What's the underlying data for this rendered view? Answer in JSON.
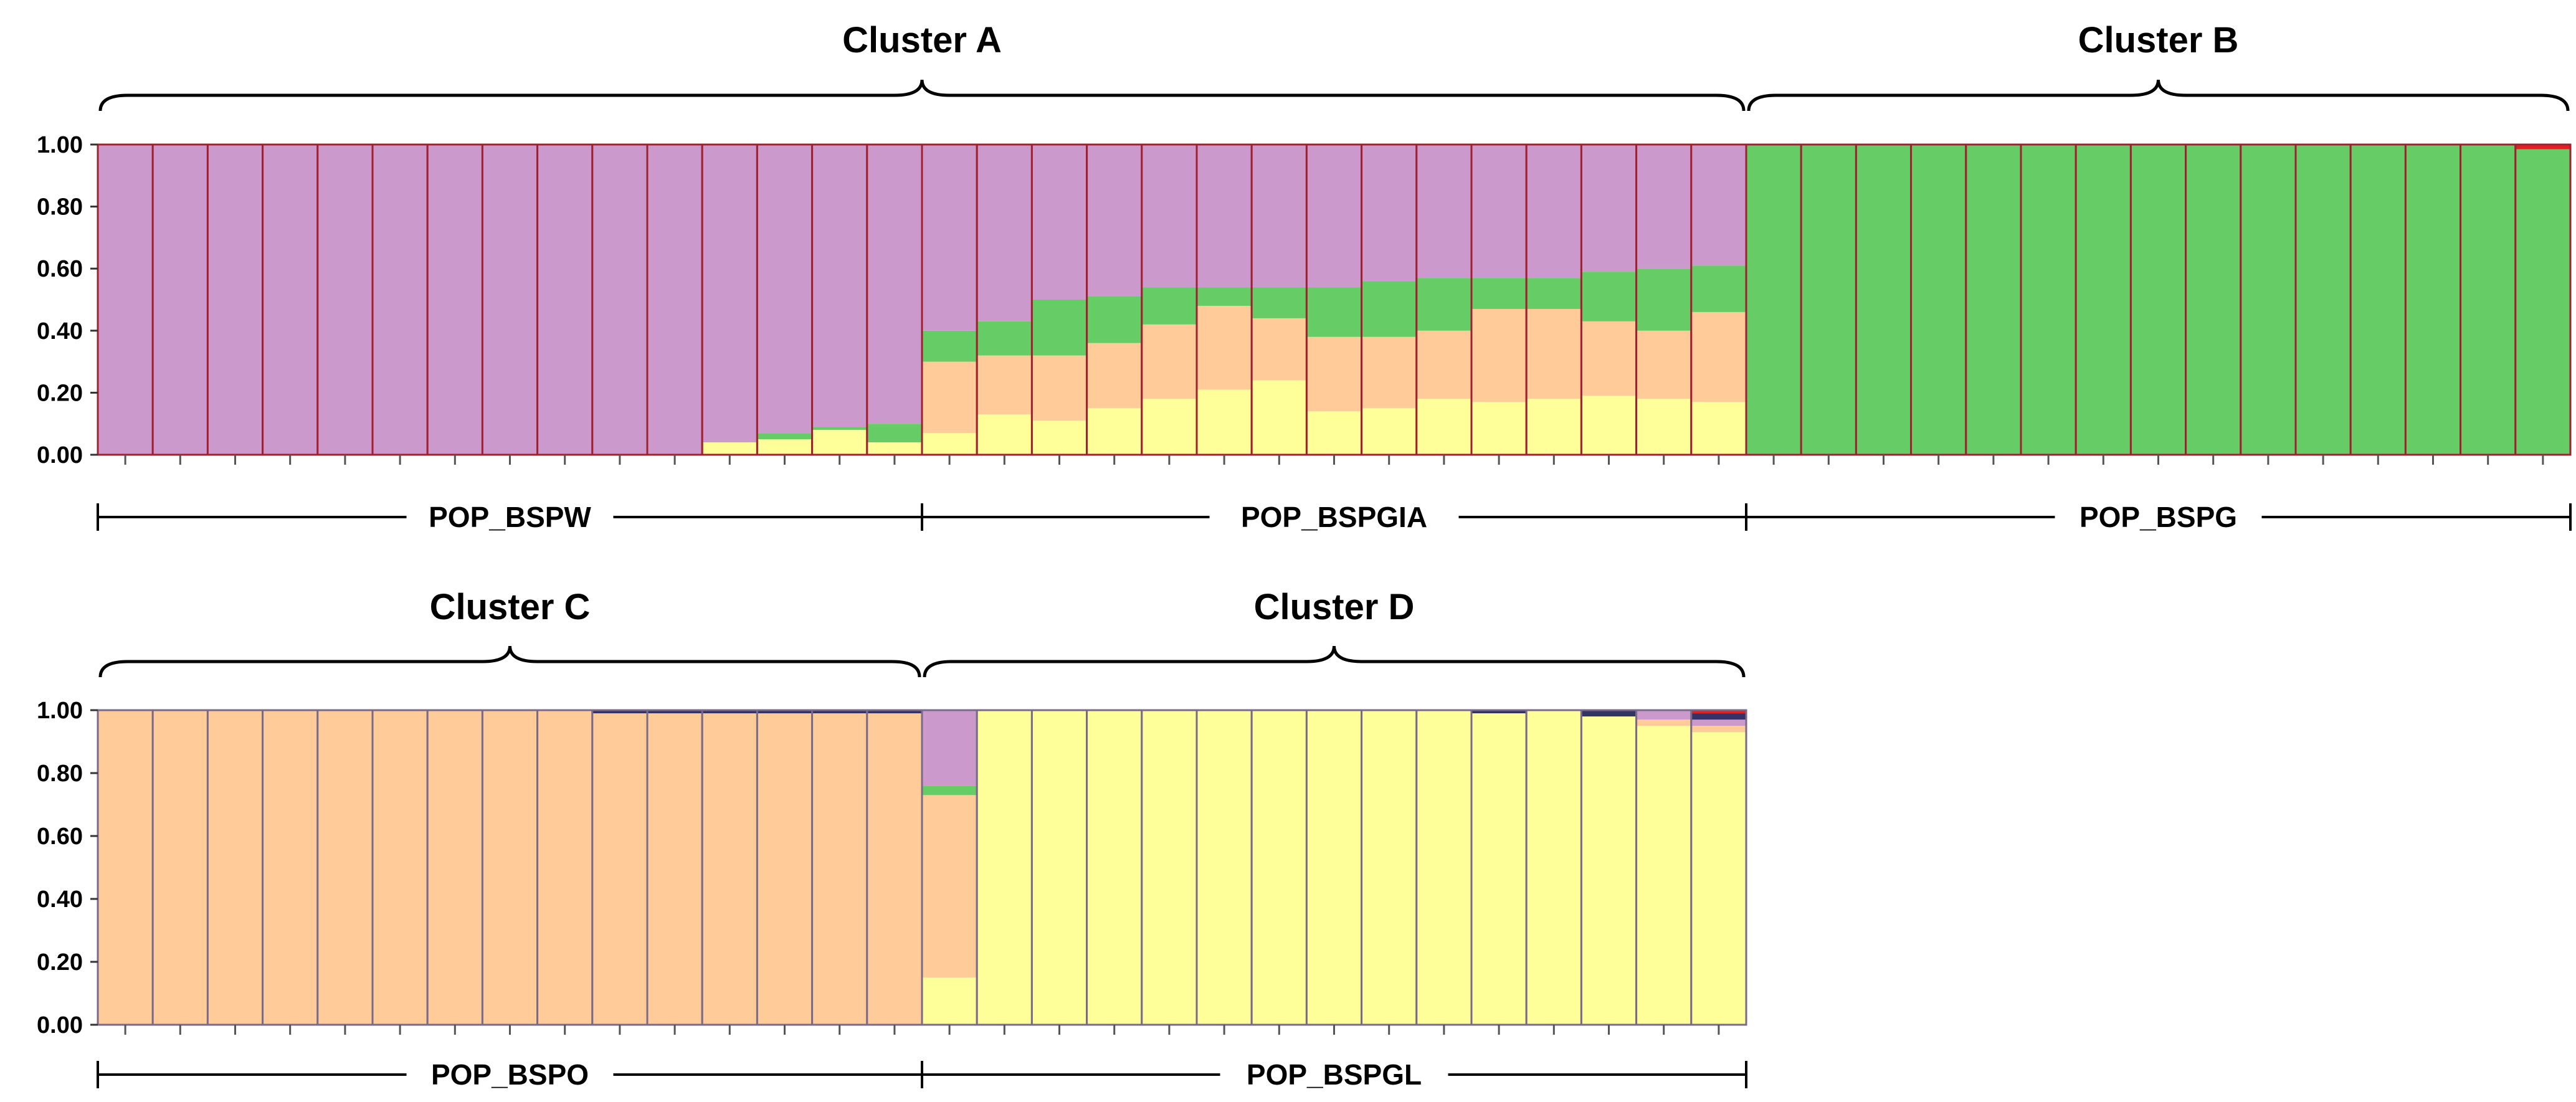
{
  "colors": {
    "purple": "#CC99CC",
    "green": "#66CC66",
    "orange": "#FFCC99",
    "yellow": "#FFFF99",
    "red": "#E02020",
    "navy": "#333366",
    "black": "#000000"
  },
  "chart_data": [
    {
      "type": "bar",
      "stacked": true,
      "ylim": [
        0,
        1
      ],
      "yticks": [
        "0.00",
        "0.20",
        "0.40",
        "0.60",
        "0.80",
        "1.00"
      ],
      "clusters": [
        {
          "label": "Cluster  A",
          "from": 0,
          "to": 30
        },
        {
          "label": "Cluster  B",
          "from": 30,
          "to": 45
        }
      ],
      "populations": [
        {
          "label": "POP_BSPW",
          "from": 0,
          "to": 15
        },
        {
          "label": "POP_BSPGIA",
          "from": 15,
          "to": 30
        },
        {
          "label": "POP_BSPG",
          "from": 30,
          "to": 45
        }
      ],
      "component_order": [
        "yellow",
        "orange",
        "green",
        "purple",
        "red"
      ],
      "component_colors": [
        "#FFFF99",
        "#FFCC99",
        "#66CC66",
        "#CC99CC",
        "#E02020"
      ],
      "bar_border": "#A02030",
      "bars": [
        [
          0,
          0,
          0,
          1,
          0
        ],
        [
          0,
          0,
          0,
          1,
          0
        ],
        [
          0,
          0,
          0,
          1,
          0
        ],
        [
          0,
          0,
          0,
          1,
          0
        ],
        [
          0,
          0,
          0,
          1,
          0
        ],
        [
          0,
          0,
          0,
          1,
          0
        ],
        [
          0,
          0,
          0,
          1,
          0
        ],
        [
          0,
          0,
          0,
          1,
          0
        ],
        [
          0,
          0,
          0,
          1,
          0
        ],
        [
          0,
          0,
          0,
          1,
          0
        ],
        [
          0,
          0,
          0,
          1,
          0
        ],
        [
          0.04,
          0,
          0,
          0.96,
          0
        ],
        [
          0.05,
          0,
          0.02,
          0.93,
          0
        ],
        [
          0.08,
          0,
          0.01,
          0.91,
          0
        ],
        [
          0.04,
          0,
          0.06,
          0.9,
          0
        ],
        [
          0.07,
          0.23,
          0.1,
          0.6,
          0
        ],
        [
          0.13,
          0.19,
          0.11,
          0.57,
          0
        ],
        [
          0.11,
          0.21,
          0.18,
          0.5,
          0
        ],
        [
          0.15,
          0.21,
          0.15,
          0.49,
          0
        ],
        [
          0.18,
          0.24,
          0.12,
          0.46,
          0
        ],
        [
          0.21,
          0.27,
          0.06,
          0.46,
          0
        ],
        [
          0.24,
          0.2,
          0.1,
          0.46,
          0
        ],
        [
          0.14,
          0.24,
          0.16,
          0.46,
          0
        ],
        [
          0.15,
          0.23,
          0.18,
          0.44,
          0
        ],
        [
          0.18,
          0.22,
          0.17,
          0.43,
          0
        ],
        [
          0.17,
          0.3,
          0.1,
          0.43,
          0
        ],
        [
          0.18,
          0.29,
          0.1,
          0.43,
          0
        ],
        [
          0.19,
          0.24,
          0.16,
          0.41,
          0
        ],
        [
          0.18,
          0.22,
          0.2,
          0.4,
          0
        ],
        [
          0.17,
          0.29,
          0.15,
          0.39,
          0
        ],
        [
          0,
          0,
          1,
          0,
          0
        ],
        [
          0,
          0,
          1,
          0,
          0
        ],
        [
          0,
          0,
          1,
          0,
          0
        ],
        [
          0,
          0,
          1,
          0,
          0
        ],
        [
          0,
          0,
          1,
          0,
          0
        ],
        [
          0,
          0,
          1,
          0,
          0
        ],
        [
          0,
          0,
          1,
          0,
          0
        ],
        [
          0,
          0,
          1,
          0,
          0
        ],
        [
          0,
          0,
          1,
          0,
          0
        ],
        [
          0,
          0,
          1,
          0,
          0
        ],
        [
          0,
          0,
          1,
          0,
          0
        ],
        [
          0,
          0,
          1,
          0,
          0
        ],
        [
          0,
          0,
          1,
          0,
          0
        ],
        [
          0,
          0,
          1,
          0,
          0
        ],
        [
          0,
          0,
          0.985,
          0,
          0.015
        ]
      ]
    },
    {
      "type": "bar",
      "stacked": true,
      "ylim": [
        0,
        1
      ],
      "yticks": [
        "0.00",
        "0.20",
        "0.40",
        "0.60",
        "0.80",
        "1.00"
      ],
      "clusters": [
        {
          "label": "Cluster  C",
          "from": 0,
          "to": 15
        },
        {
          "label": "Cluster  D",
          "from": 15,
          "to": 30
        }
      ],
      "populations": [
        {
          "label": "POP_BSPO",
          "from": 0,
          "to": 15
        },
        {
          "label": "POP_BSPGL",
          "from": 15,
          "to": 30
        }
      ],
      "component_order": [
        "yellow",
        "orange",
        "green",
        "purple",
        "navy",
        "red"
      ],
      "component_colors": [
        "#FFFF99",
        "#FFCC99",
        "#66CC66",
        "#CC99CC",
        "#333366",
        "#E02020"
      ],
      "bar_border": "#7A6A8A",
      "bars": [
        [
          0,
          1,
          0,
          0,
          0,
          0
        ],
        [
          0,
          1,
          0,
          0,
          0,
          0
        ],
        [
          0,
          1,
          0,
          0,
          0,
          0
        ],
        [
          0,
          1,
          0,
          0,
          0,
          0
        ],
        [
          0,
          1,
          0,
          0,
          0,
          0
        ],
        [
          0,
          1,
          0,
          0,
          0,
          0
        ],
        [
          0,
          1,
          0,
          0,
          0,
          0
        ],
        [
          0,
          1,
          0,
          0,
          0,
          0
        ],
        [
          0,
          1,
          0,
          0,
          0,
          0
        ],
        [
          0,
          0.99,
          0,
          0,
          0.01,
          0
        ],
        [
          0,
          0.99,
          0,
          0,
          0.01,
          0
        ],
        [
          0,
          0.99,
          0,
          0,
          0.01,
          0
        ],
        [
          0,
          0.99,
          0,
          0,
          0.01,
          0
        ],
        [
          0,
          0.99,
          0,
          0,
          0.01,
          0
        ],
        [
          0,
          0.99,
          0,
          0,
          0.01,
          0
        ],
        [
          0.15,
          0.58,
          0.03,
          0.24,
          0,
          0
        ],
        [
          1,
          0,
          0,
          0,
          0,
          0
        ],
        [
          1,
          0,
          0,
          0,
          0,
          0
        ],
        [
          1,
          0,
          0,
          0,
          0,
          0
        ],
        [
          1,
          0,
          0,
          0,
          0,
          0
        ],
        [
          1,
          0,
          0,
          0,
          0,
          0
        ],
        [
          1,
          0,
          0,
          0,
          0,
          0
        ],
        [
          1,
          0,
          0,
          0,
          0,
          0
        ],
        [
          1,
          0,
          0,
          0,
          0,
          0
        ],
        [
          1,
          0,
          0,
          0,
          0,
          0
        ],
        [
          0.99,
          0,
          0,
          0,
          0.01,
          0
        ],
        [
          1,
          0,
          0,
          0,
          0,
          0
        ],
        [
          0.98,
          0,
          0,
          0,
          0.02,
          0
        ],
        [
          0.95,
          0.02,
          0,
          0.03,
          0,
          0
        ],
        [
          0.93,
          0.02,
          0,
          0.02,
          0.02,
          0.01
        ]
      ]
    }
  ]
}
